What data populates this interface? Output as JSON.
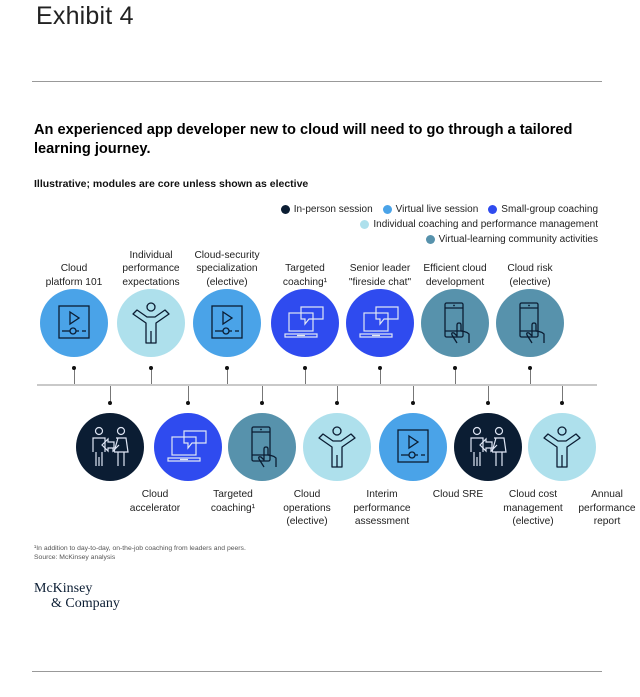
{
  "exhibit_label": "Exhibit 4",
  "title": "An experienced app developer new to cloud will need to go through a tailored learning journey.",
  "subtitle": "Illustrative; modules are core unless shown as elective",
  "colors": {
    "in_person": "#0b1d33",
    "virtual_live": "#4aa3e8",
    "small_group": "#2f4bef",
    "individual": "#aee0ec",
    "community": "#5792ac"
  },
  "legend": [
    {
      "key": "in_person",
      "label": "In-person session"
    },
    {
      "key": "virtual_live",
      "label": "Virtual live session"
    },
    {
      "key": "small_group",
      "label": "Small-group coaching"
    },
    {
      "key": "individual",
      "label": "Individual coaching and performance management"
    },
    {
      "key": "community",
      "label": "Virtual-learning community activities"
    }
  ],
  "modules_top": [
    {
      "label": "Cloud\nplatform 101",
      "type": "virtual_live",
      "icon": "video-player-icon"
    },
    {
      "label": "Individual\nperformance\nexpectations",
      "type": "individual",
      "icon": "person-arms-up-icon"
    },
    {
      "label": "Cloud-security\nspecialization\n(elective)",
      "type": "virtual_live",
      "icon": "video-player-icon"
    },
    {
      "label": "Targeted\ncoaching¹",
      "type": "small_group",
      "icon": "laptop-chat-icon"
    },
    {
      "label": "Senior leader\n\"fireside chat\"",
      "type": "small_group",
      "icon": "laptop-chat-icon"
    },
    {
      "label": "Efficient cloud\ndevelopment",
      "type": "community",
      "icon": "phone-tap-icon"
    },
    {
      "label": "Cloud risk\n(elective)",
      "type": "community",
      "icon": "phone-tap-icon"
    }
  ],
  "modules_bottom": [
    {
      "label": "Cloud\naccelerator",
      "type": "in_person",
      "icon": "people-exchange-icon"
    },
    {
      "label": "Targeted\ncoaching¹",
      "type": "small_group",
      "icon": "laptop-chat-icon"
    },
    {
      "label": "Cloud\noperations\n(elective)",
      "type": "community",
      "icon": "phone-tap-icon"
    },
    {
      "label": "Interim\nperformance\nassessment",
      "type": "individual",
      "icon": "person-arms-up-icon"
    },
    {
      "label": "Cloud SRE",
      "type": "virtual_live",
      "icon": "video-player-icon"
    },
    {
      "label": "Cloud cost\nmanagement\n(elective)",
      "type": "in_person",
      "icon": "people-exchange-icon"
    },
    {
      "label": "Annual\nperformance\nreport",
      "type": "individual",
      "icon": "person-arms-up-icon"
    }
  ],
  "footnote": "¹In addition to day-to-day, on-the-job coaching from leaders and peers.",
  "source": "Source: McKinsey analysis",
  "logo": {
    "line1": "McKinsey",
    "line2": "& Company"
  }
}
